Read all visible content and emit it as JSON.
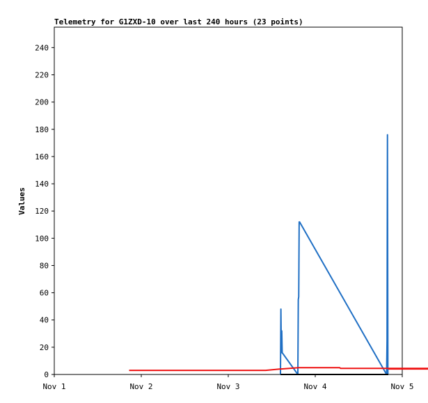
{
  "chart_data": {
    "type": "line",
    "title": "Telemetry for G1ZXD-10 over last 240 hours (23 points)",
    "xlabel": "",
    "ylabel": "Values",
    "x_ticks": [
      "Nov 1",
      "Nov 2",
      "Nov 3",
      "Nov 4",
      "Nov 5"
    ],
    "xlim": [
      0,
      4
    ],
    "y_ticks": [
      0,
      20,
      40,
      60,
      80,
      100,
      120,
      140,
      160,
      180,
      200,
      220,
      240
    ],
    "ylim": [
      0,
      255
    ],
    "grid": false,
    "legend": "none",
    "series": [
      {
        "color": "#1f6fc4",
        "x": [
          2.6,
          2.605,
          2.61,
          2.615,
          2.62,
          2.8,
          2.805,
          2.81,
          2.815,
          2.82,
          3.82,
          3.825,
          3.83,
          3.835
        ],
        "y": [
          0,
          48,
          16,
          32,
          16,
          0,
          55,
          57,
          112,
          112,
          0,
          25,
          176,
          0
        ]
      },
      {
        "color": "#ee1111",
        "x": [
          0.86,
          2.42,
          2.43,
          2.6,
          2.61,
          2.81,
          2.82,
          3.28,
          3.29,
          4.3,
          4.31,
          3.84
        ],
        "y": [
          3,
          3,
          3,
          4,
          4,
          5,
          5,
          5,
          4.5,
          4.5,
          4,
          4
        ]
      },
      {
        "color": "#000000",
        "x": [
          2.6,
          3.84
        ],
        "y": [
          0,
          0
        ]
      }
    ]
  }
}
